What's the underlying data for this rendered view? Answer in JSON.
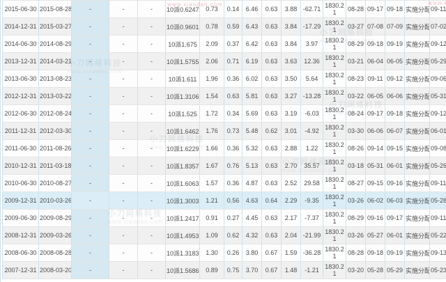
{
  "watermark": {
    "line1": "小刀网络科技",
    "line2": "www.xiaodao.com"
  },
  "colors": {
    "row_alt": "#f0f0f0",
    "column_highlight": "#d6e8f1",
    "row_hover_highlight": "#dbeef7",
    "grid_vertical": "#cfe1eb",
    "grid_horizontal": "#e4e4e4",
    "text": "#4d4d4d",
    "watermark_pink": "#d25f6e",
    "watermark_gray": "#8a9aa5"
  },
  "table": {
    "status_label": "实施分配",
    "rows": [
      {
        "highlighted": false,
        "cells": [
          "2015-06-30",
          "2015-08-28",
          "-",
          "-",
          "-",
          "10派0.6247",
          "0.73",
          "0.14",
          "6.46",
          "0.63",
          "3.88",
          "-62.71",
          "1830.21",
          "08-28",
          "09-17",
          "09-18",
          "实施分配",
          "09-11"
        ]
      },
      {
        "highlighted": false,
        "cells": [
          "2014-12-31",
          "2015-03-27",
          "-",
          "-",
          "-",
          "10派0.9601",
          "0.78",
          "0.59",
          "6.43",
          "0.63",
          "3.84",
          "-17.29",
          "1830.21",
          "03-27",
          "07-08",
          "07-09",
          "实施分配",
          "07-02"
        ]
      },
      {
        "highlighted": false,
        "cells": [
          "2014-06-30",
          "2014-08-29",
          "-",
          "-",
          "-",
          "10派1.675",
          "2.09",
          "0.37",
          "6.42",
          "0.63",
          "3.84",
          "3.97",
          "1830.21",
          "08-29",
          "09-18",
          "09-19",
          "实施分配",
          "09-12"
        ]
      },
      {
        "highlighted": false,
        "cells": [
          "2013-12-31",
          "2014-03-21",
          "-",
          "-",
          "-",
          "10派1.5755",
          "2.06",
          "0.71",
          "6.19",
          "0.63",
          "3.63",
          "12.36",
          "1830.21",
          "03-21",
          "06-04",
          "06-05",
          "实施分配",
          "05-29"
        ]
      },
      {
        "highlighted": false,
        "cells": [
          "2013-06-30",
          "2013-08-23",
          "-",
          "-",
          "-",
          "10派1.611",
          "1.96",
          "0.36",
          "6.02",
          "0.63",
          "3.50",
          "5.64",
          "1830.21",
          "08-23",
          "09-11",
          "09-12",
          "实施分配",
          "09-06"
        ]
      },
      {
        "highlighted": false,
        "cells": [
          "2012-12-31",
          "2013-03-22",
          "-",
          "-",
          "-",
          "10派1.3106",
          "1.54",
          "0.63",
          "5.81",
          "0.63",
          "3.27",
          "-13.28",
          "1830.21",
          "03-22",
          "06-05",
          "06-06",
          "实施分配",
          "05-31"
        ]
      },
      {
        "highlighted": false,
        "cells": [
          "2012-06-30",
          "2012-08-24",
          "-",
          "-",
          "-",
          "10派1.525",
          "1.72",
          "0.34",
          "5.69",
          "0.63",
          "3.19",
          "-6.03",
          "1830.21",
          "08-24",
          "09-17",
          "09-18",
          "实施分配",
          "09-12"
        ]
      },
      {
        "highlighted": false,
        "cells": [
          "2011-12-31",
          "2012-03-30",
          "-",
          "-",
          "-",
          "10派1.6462",
          "1.76",
          "0.73",
          "5.48",
          "0.62",
          "3.01",
          "-4.92",
          "1830.21",
          "03-30",
          "06-06",
          "06-07",
          "实施分配",
          "06-01"
        ]
      },
      {
        "highlighted": false,
        "cells": [
          "2011-06-30",
          "2011-08-26",
          "-",
          "-",
          "-",
          "10派1.6229",
          "1.66",
          "0.36",
          "5.32",
          "0.63",
          "2.88",
          "1.22",
          "1830.21",
          "08-26",
          "09-14",
          "09-15",
          "实施分配",
          "09-08"
        ]
      },
      {
        "highlighted": false,
        "cells": [
          "2010-12-31",
          "2011-03-18",
          "-",
          "-",
          "-",
          "10派1.8357",
          "1.67",
          "0.76",
          "5.13",
          "0.63",
          "2.70",
          "35.57",
          "1830.21",
          "03-18",
          "05-31",
          "06-01",
          "实施分配",
          "05-26"
        ]
      },
      {
        "highlighted": false,
        "cells": [
          "2010-06-30",
          "2010-08-27",
          "-",
          "-",
          "-",
          "10派1.6063",
          "1.57",
          "0.36",
          "4.87",
          "0.63",
          "2.52",
          "29.58",
          "1830.21",
          "08-27",
          "09-15",
          "09-16",
          "实施分配",
          "09-11"
        ]
      },
      {
        "highlighted": true,
        "cells": [
          "2009-12-31",
          "2010-03-26",
          "-",
          "-",
          "-",
          "10派1.3003",
          "1.21",
          "0.56",
          "4.63",
          "0.64",
          "2.29",
          "-9.35",
          "1830.21",
          "03-26",
          "06-02",
          "06-03",
          "实施分配",
          "05-28"
        ]
      },
      {
        "highlighted": false,
        "cells": [
          "2009-06-30",
          "2009-08-29",
          "-",
          "-",
          "-",
          "10派1.2417",
          "0.91",
          "0.27",
          "4.45",
          "0.63",
          "2.17",
          "-7.37",
          "1830.21",
          "08-29",
          "09-16",
          "09-17",
          "实施分配",
          "09-11"
        ]
      },
      {
        "highlighted": false,
        "cells": [
          "2008-12-31",
          "2009-03-26",
          "-",
          "-",
          "-",
          "10派1.4953",
          "1.09",
          "0.62",
          "4.32",
          "0.63",
          "2.04",
          "-21.99",
          "1830.21",
          "03-26",
          "05-27",
          "06-01",
          "实施分配",
          "05-22"
        ]
      },
      {
        "highlighted": false,
        "cells": [
          "2008-06-30",
          "2008-08-28",
          "-",
          "-",
          "-",
          "10派1.3183",
          "1.30",
          "0.26",
          "3.80",
          "0.67",
          "1.59",
          "-36.28",
          "1830.21",
          "08-28",
          "09-18",
          "09-19",
          "实施分配",
          "09-13"
        ]
      },
      {
        "highlighted": false,
        "cells": [
          "2007-12-31",
          "2008-03-20",
          "-",
          "-",
          "-",
          "10派1.5686",
          "0.89",
          "0.75",
          "3.70",
          "0.67",
          "1.48",
          "-1.21",
          "1830.21",
          "03-20",
          "05-28",
          "05-29",
          "实施分配",
          "05-23"
        ]
      }
    ]
  }
}
